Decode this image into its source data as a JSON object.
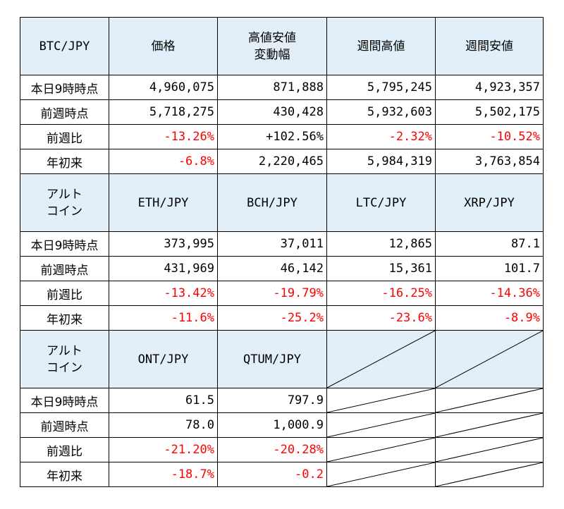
{
  "btc": {
    "header": {
      "pair": "BTC/JPY",
      "price": "価格",
      "range_line1": "高値安値",
      "range_line2": "変動幅",
      "weekly_high": "週間高値",
      "weekly_low": "週間安値"
    },
    "rows": [
      {
        "label": "本日9時時点",
        "values": [
          "4,960,075",
          "871,888",
          "5,795,245",
          "4,923,357"
        ]
      },
      {
        "label": "前週時点",
        "values": [
          "5,718,275",
          "430,428",
          "5,932,603",
          "5,502,175"
        ]
      },
      {
        "label": "前週比",
        "values": [
          "-13.26%",
          "+102.56%",
          "-2.32%",
          "-10.52%"
        ]
      },
      {
        "label": "年初来",
        "values": [
          "-6.8%",
          "2,220,465",
          "5,984,319",
          "3,763,854"
        ]
      }
    ]
  },
  "alt1": {
    "header": {
      "label_line1": "アルト",
      "label_line2": "コイン",
      "coins": [
        "ETH/JPY",
        "BCH/JPY",
        "LTC/JPY",
        "XRP/JPY"
      ]
    },
    "rows": [
      {
        "label": "本日9時時点",
        "values": [
          "373,995",
          "37,011",
          "12,865",
          "87.1"
        ]
      },
      {
        "label": "前週時点",
        "values": [
          "431,969",
          "46,142",
          "15,361",
          "101.7"
        ]
      },
      {
        "label": "前週比",
        "values": [
          "-13.42%",
          "-19.79%",
          "-16.25%",
          "-14.36%"
        ]
      },
      {
        "label": "年初来",
        "values": [
          "-11.6%",
          "-25.2%",
          "-23.6%",
          "-8.9%"
        ]
      }
    ]
  },
  "alt2": {
    "header": {
      "label_line1": "アルト",
      "label_line2": "コイン",
      "coins": [
        "ONT/JPY",
        "QTUM/JPY"
      ]
    },
    "rows": [
      {
        "label": "本日9時時点",
        "values": [
          "61.5",
          "797.9"
        ]
      },
      {
        "label": "前週時点",
        "values": [
          "78.0",
          "1,000.9"
        ]
      },
      {
        "label": "前週比",
        "values": [
          "-21.20%",
          "-20.28%"
        ]
      },
      {
        "label": "年初来",
        "values": [
          "-18.7%",
          "-0.2"
        ]
      }
    ]
  },
  "colors": {
    "header_bg": "#e2eff9",
    "negative_text": "#ff0000",
    "border": "#000000"
  }
}
